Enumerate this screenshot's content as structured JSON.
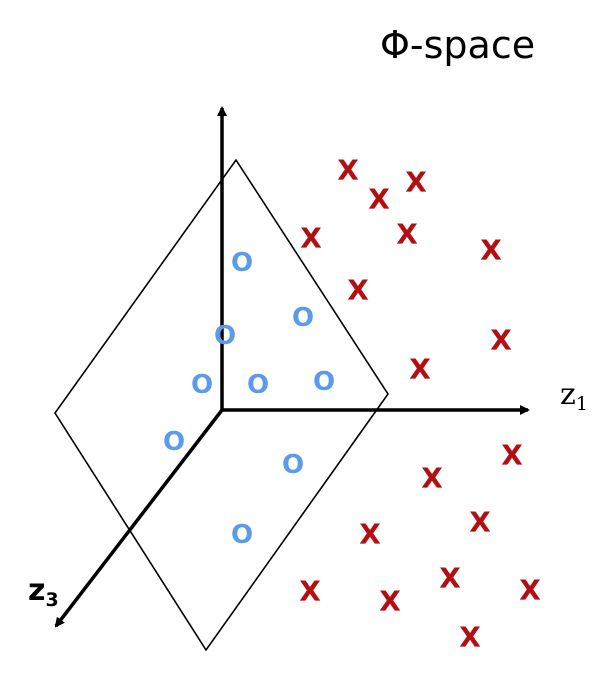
{
  "title": "Φ-space",
  "axes": {
    "z1": {
      "base": "z",
      "sub": "1"
    },
    "z3": {
      "base": "z",
      "sub": "3"
    }
  },
  "class_o": {
    "symbol": "O",
    "color": "#5b9bea",
    "count": 10
  },
  "class_x": {
    "symbol": "X",
    "color": "#b30f12",
    "count": 22
  },
  "colors": {
    "axis": "#000000",
    "plane": "#000000"
  }
}
